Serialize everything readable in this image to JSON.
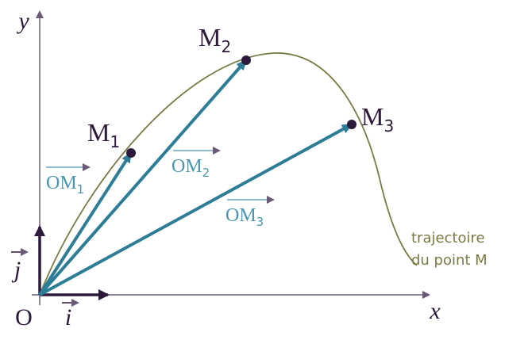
{
  "axes": {
    "x": "x",
    "y": "y",
    "origin": "O"
  },
  "unit_vectors": {
    "i": "i",
    "j": "j"
  },
  "points": [
    {
      "name": "M",
      "index": "1"
    },
    {
      "name": "M",
      "index": "2"
    },
    {
      "name": "M",
      "index": "3"
    }
  ],
  "vectors": [
    {
      "name": "OM",
      "index": "1"
    },
    {
      "name": "OM",
      "index": "2"
    },
    {
      "name": "OM",
      "index": "3"
    }
  ],
  "trajectory_label": [
    "trajectoire",
    "du point M"
  ]
}
